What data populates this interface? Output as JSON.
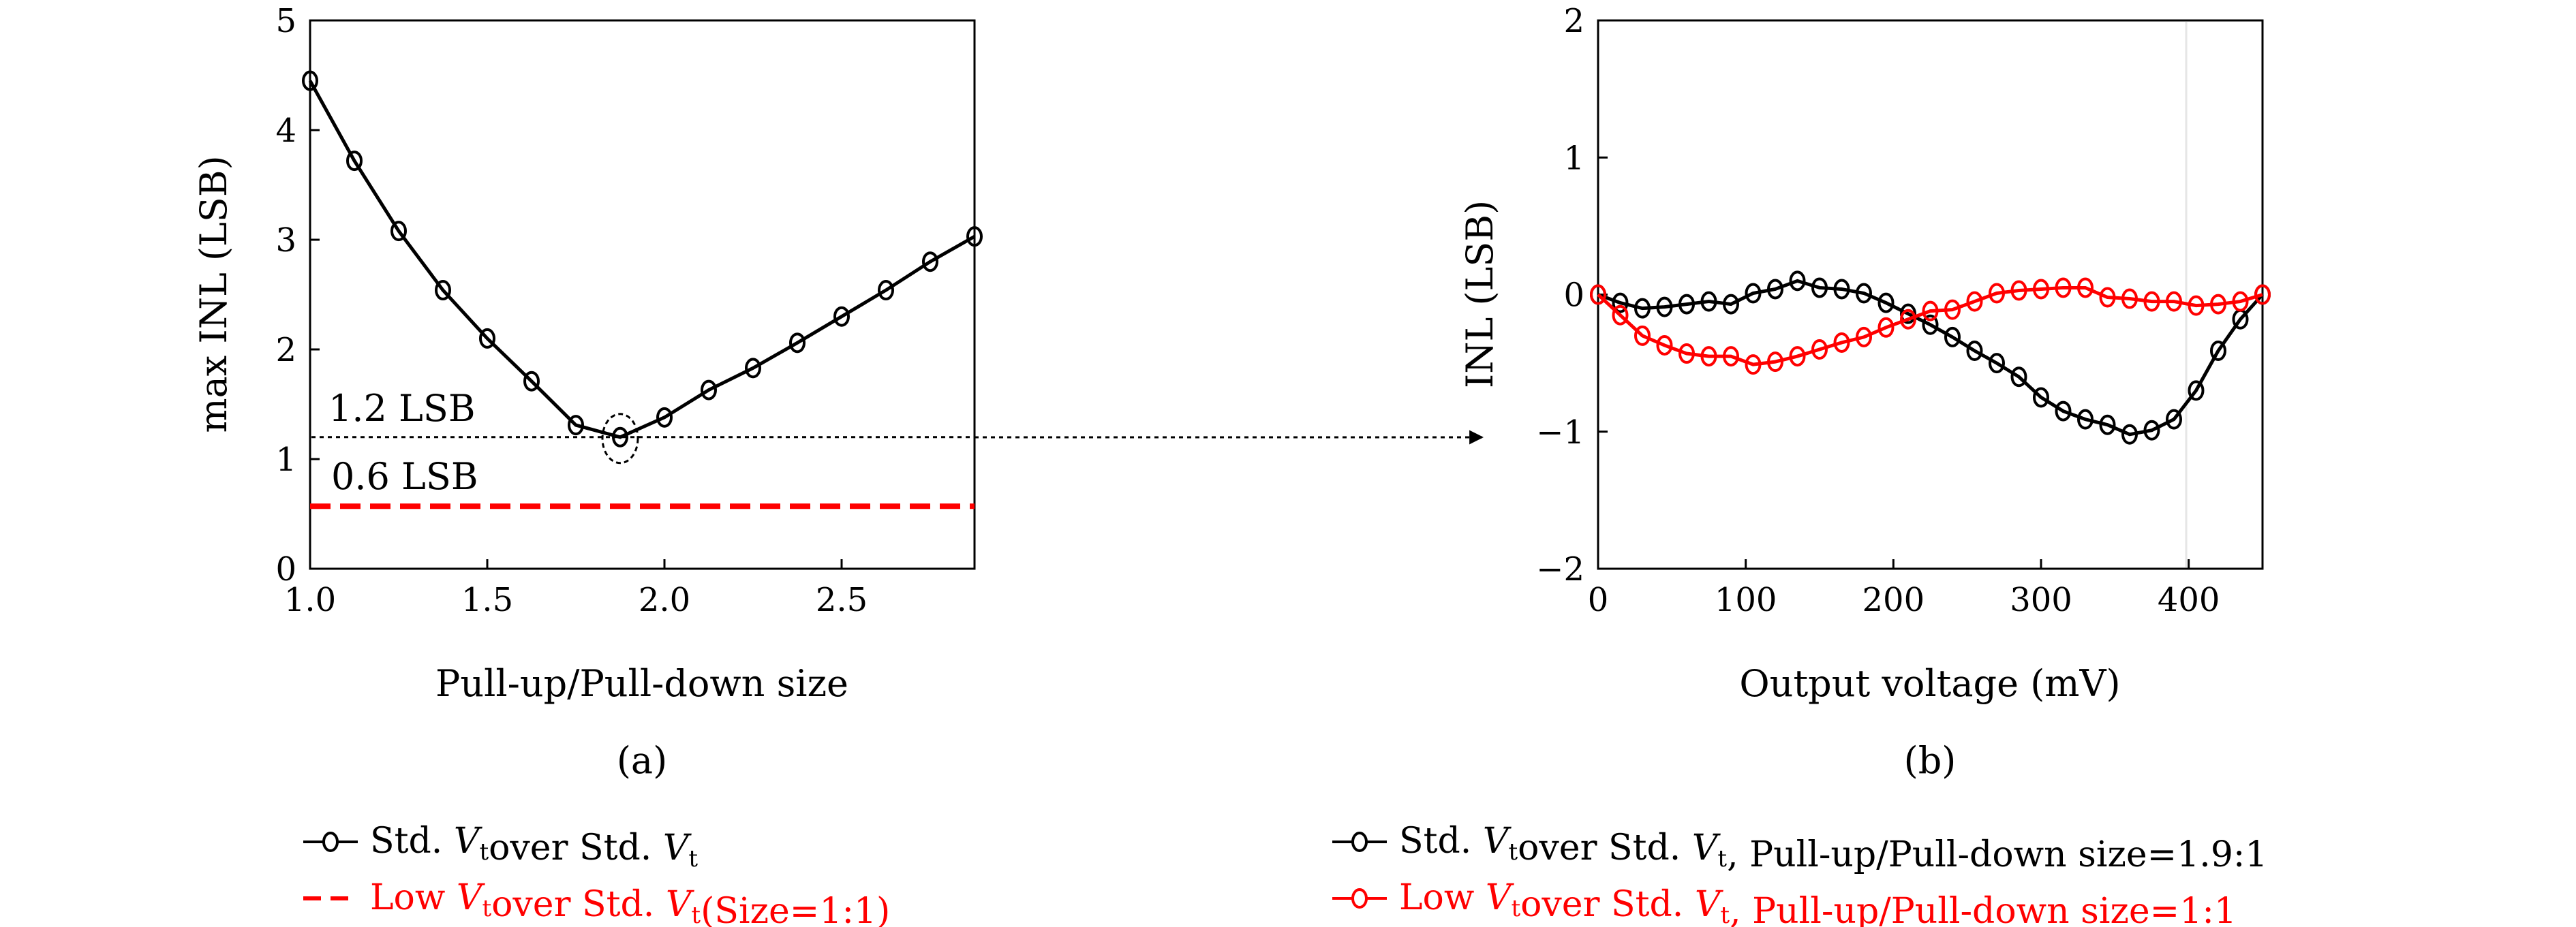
{
  "chart_data": [
    {
      "id": "a",
      "type": "line",
      "caption": "(a)",
      "xlabel": "Pull-up/Pull-down size",
      "ylabel": "max INL (LSB)",
      "xlim": [
        1.0,
        2.875
      ],
      "ylim": [
        0,
        5
      ],
      "xticks": [
        "1.0",
        "1.5",
        "2.0",
        "2.5"
      ],
      "xtick_values": [
        1.0,
        1.5,
        2.0,
        2.5
      ],
      "yticks": [
        "0",
        "1",
        "2",
        "3",
        "4",
        "5"
      ],
      "ytick_values": [
        0,
        1,
        2,
        3,
        4,
        5
      ],
      "grid": false,
      "legend_position": "below",
      "series": [
        {
          "name": "Std. Vt over Std. Vt",
          "color": "#000000",
          "style": "solid-circle",
          "x": [
            1.0,
            1.125,
            1.25,
            1.375,
            1.5,
            1.625,
            1.75,
            1.875,
            2.0,
            2.125,
            2.25,
            2.375,
            2.5,
            2.625,
            2.75,
            2.875
          ],
          "y": [
            4.45,
            3.72,
            3.08,
            2.54,
            2.1,
            1.71,
            1.31,
            1.2,
            1.38,
            1.63,
            1.83,
            2.06,
            2.3,
            2.54,
            2.8,
            3.03
          ]
        },
        {
          "name": "Low Vt over Std. Vt (Size=1:1)",
          "color": "#ff0000",
          "style": "dashed",
          "x": [
            1.0,
            2.875
          ],
          "y": [
            0.57,
            0.57
          ]
        }
      ],
      "annotations": [
        {
          "text": "1.2 LSB",
          "color": "#000000",
          "value": 1.2
        },
        {
          "text": "0.6 LSB",
          "color": "#ff0000",
          "value": 0.6
        }
      ],
      "legend": [
        {
          "prefix": "Std. ",
          "v": "V",
          "sub": "t",
          "mid": "over Std. ",
          "v2": "V",
          "sub2": "t",
          "suffix": "",
          "color": "#000000"
        },
        {
          "prefix": "Low ",
          "v": "V",
          "sub": "t",
          "mid": "over Std. ",
          "v2": "V",
          "sub2": "t",
          "suffix": "(Size=1:1)",
          "color": "#ff0000"
        }
      ]
    },
    {
      "id": "b",
      "type": "line",
      "caption": "(b)",
      "xlabel": "Output voltage (mV)",
      "ylabel": "INL (LSB)",
      "xlim": [
        0,
        450
      ],
      "ylim": [
        -2,
        2
      ],
      "xticks": [
        "0",
        "100",
        "200",
        "300",
        "400"
      ],
      "xtick_values": [
        0,
        100,
        200,
        300,
        400
      ],
      "yticks": [
        "−2",
        "−1",
        "0",
        "1",
        "2"
      ],
      "ytick_values": [
        -2,
        -1,
        0,
        1,
        2
      ],
      "grid": false,
      "legend_position": "below",
      "series": [
        {
          "name": "Std. Vt over Std. Vt, Pull-up/Pull-down size=1.9:1",
          "color": "#000000",
          "style": "solid-circle",
          "x": [
            0,
            15,
            30,
            45,
            60,
            75,
            90,
            105,
            120,
            135,
            150,
            165,
            180,
            195,
            210,
            225,
            240,
            255,
            270,
            285,
            300,
            315,
            330,
            345,
            360,
            375,
            390,
            405,
            420,
            435,
            450
          ],
          "y": [
            0,
            -0.06,
            -0.1,
            -0.09,
            -0.07,
            -0.05,
            -0.07,
            0.01,
            0.04,
            0.1,
            0.05,
            0.04,
            0.01,
            -0.06,
            -0.14,
            -0.22,
            -0.31,
            -0.41,
            -0.5,
            -0.6,
            -0.75,
            -0.85,
            -0.91,
            -0.95,
            -1.02,
            -0.99,
            -0.91,
            -0.7,
            -0.41,
            -0.18,
            0
          ]
        },
        {
          "name": "Low Vt over Std. Vt, Pull-up/Pull-down size=1:1",
          "color": "#ff0000",
          "style": "solid-circle",
          "x": [
            0,
            15,
            30,
            45,
            60,
            75,
            90,
            105,
            120,
            135,
            150,
            165,
            180,
            195,
            210,
            225,
            240,
            255,
            270,
            285,
            300,
            315,
            330,
            345,
            360,
            375,
            390,
            405,
            420,
            435,
            450
          ],
          "y": [
            0,
            -0.15,
            -0.3,
            -0.37,
            -0.43,
            -0.45,
            -0.45,
            -0.51,
            -0.49,
            -0.45,
            -0.4,
            -0.35,
            -0.31,
            -0.24,
            -0.18,
            -0.12,
            -0.11,
            -0.05,
            0.01,
            0.03,
            0.04,
            0.05,
            0.05,
            -0.02,
            -0.03,
            -0.05,
            -0.05,
            -0.08,
            -0.07,
            -0.05,
            0
          ]
        }
      ],
      "legend": [
        {
          "prefix": "Std. ",
          "v": "V",
          "sub": "t",
          "mid": "over Std. ",
          "v2": "V",
          "sub2": "t",
          "suffix": ", Pull-up/Pull-down size=1.9:1",
          "color": "#000000"
        },
        {
          "prefix": "Low ",
          "v": "V",
          "sub": "t",
          "mid": "over Std. ",
          "v2": "V",
          "sub2": "t",
          "suffix": ", Pull-up/Pull-down size=1:1",
          "color": "#ff0000"
        }
      ]
    }
  ]
}
